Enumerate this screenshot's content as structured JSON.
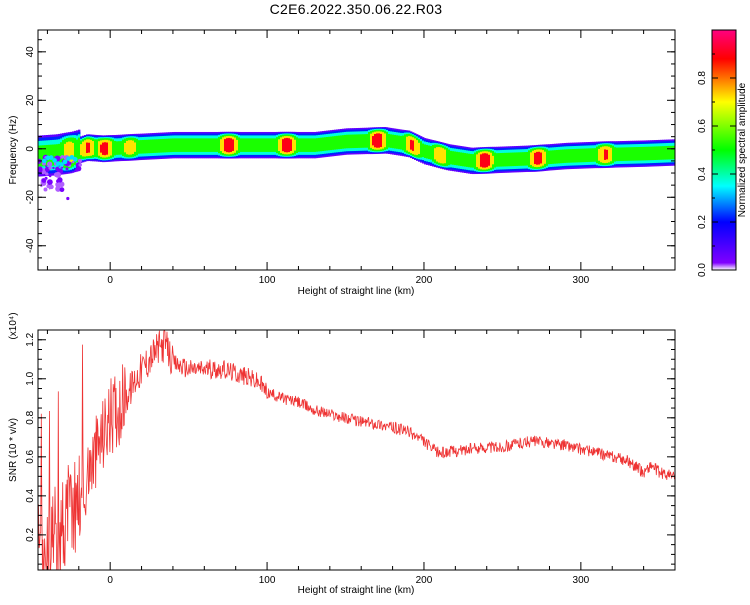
{
  "page": {
    "title": "C2E6.2022.350.06.22.R03"
  },
  "chart_data": [
    {
      "type": "heatmap",
      "xlabel": "Height of straight line (km)",
      "ylabel": "Frequency (Hz)",
      "xlim": [
        -46,
        360
      ],
      "ylim": [
        -50,
        49
      ],
      "xticks": [
        0,
        100,
        200,
        300
      ],
      "yticks": [
        -40,
        -20,
        0,
        20,
        40
      ],
      "grid": false,
      "colorbar": {
        "label": "Normalized spectral amplitude",
        "range": [
          0,
          1
        ],
        "ticks": [
          0.0,
          0.2,
          0.4,
          0.6,
          0.8
        ],
        "tick_labels": [
          "0.0",
          "0.2",
          "0.4",
          "0.6",
          "0.8"
        ],
        "colormap": [
          "#ffffff",
          "#8000ff",
          "#0000ff",
          "#00ffff",
          "#00ff00",
          "#ffff00",
          "#ff0000",
          "#ff0080"
        ]
      },
      "ridge_frequency_hz": {
        "x": [
          -46,
          -35,
          -25,
          -15,
          -5,
          10,
          40,
          70,
          100,
          130,
          150,
          175,
          190,
          200,
          215,
          230,
          250,
          270,
          290,
          310,
          340,
          360
        ],
        "y": [
          -3,
          -2.5,
          -1.5,
          0.5,
          0,
          0.5,
          1.5,
          1.5,
          1.5,
          1.5,
          3,
          3.5,
          2,
          -1,
          -3.5,
          -5,
          -4.5,
          -4,
          -3,
          -2.5,
          -2,
          -1.5
        ]
      },
      "peak_intensity": [
        {
          "x": -36,
          "y": -4,
          "v": 0.5
        },
        {
          "x": -27,
          "y": -1,
          "v": 0.8
        },
        {
          "x": -15,
          "y": 1,
          "v": 0.9
        },
        {
          "x": -4,
          "y": 0,
          "v": 0.95
        },
        {
          "x": 12,
          "y": 0,
          "v": 0.8
        },
        {
          "x": 75,
          "y": 1.5,
          "v": 1.0
        },
        {
          "x": 112,
          "y": 1.5,
          "v": 1.0
        },
        {
          "x": 170,
          "y": 3.5,
          "v": 1.0
        },
        {
          "x": 192,
          "y": 2,
          "v": 0.9
        },
        {
          "x": 210,
          "y": -3,
          "v": 0.85
        },
        {
          "x": 238,
          "y": -5,
          "v": 1.0
        },
        {
          "x": 272,
          "y": -4,
          "v": 0.95
        },
        {
          "x": 315,
          "y": -2.5,
          "v": 0.9
        }
      ]
    },
    {
      "type": "line",
      "xlabel": "Height of straight line (km)",
      "ylabel": "SNR (10 * v/v)",
      "y_multiplier_label": "(x10⁴)",
      "xlim": [
        -46,
        360
      ],
      "ylim": [
        0.02,
        1.25
      ],
      "xticks": [
        0,
        100,
        200,
        300
      ],
      "yticks": [
        0.2,
        0.4,
        0.6,
        0.8,
        1.0,
        1.2
      ],
      "ytick_labels": [
        "0.2",
        "0.4",
        "0.6",
        "0.8",
        "1.0",
        "1.2"
      ],
      "grid": false,
      "series": [
        {
          "color": "#ee3333",
          "x": [
            -46,
            -40,
            -35,
            -30,
            -25,
            -20,
            -15,
            -10,
            -5,
            0,
            5,
            10,
            15,
            20,
            25,
            30,
            35,
            40,
            50,
            60,
            70,
            80,
            90,
            95,
            100,
            110,
            120,
            130,
            140,
            150,
            160,
            170,
            180,
            190,
            200,
            205,
            210,
            220,
            230,
            240,
            250,
            260,
            270,
            280,
            290,
            300,
            310,
            320,
            330,
            335,
            340,
            345,
            350,
            360
          ],
          "y": [
            0.1,
            0.08,
            0.18,
            0.25,
            0.35,
            0.4,
            0.5,
            0.6,
            0.7,
            0.8,
            0.85,
            0.9,
            0.98,
            1.05,
            1.1,
            1.15,
            1.18,
            1.08,
            1.05,
            1.05,
            1.05,
            1.03,
            1.0,
            0.98,
            0.93,
            0.9,
            0.88,
            0.84,
            0.82,
            0.8,
            0.78,
            0.77,
            0.75,
            0.73,
            0.68,
            0.64,
            0.62,
            0.63,
            0.64,
            0.65,
            0.65,
            0.67,
            0.68,
            0.67,
            0.66,
            0.64,
            0.62,
            0.6,
            0.58,
            0.55,
            0.52,
            0.56,
            0.52,
            0.5
          ]
        }
      ]
    }
  ]
}
